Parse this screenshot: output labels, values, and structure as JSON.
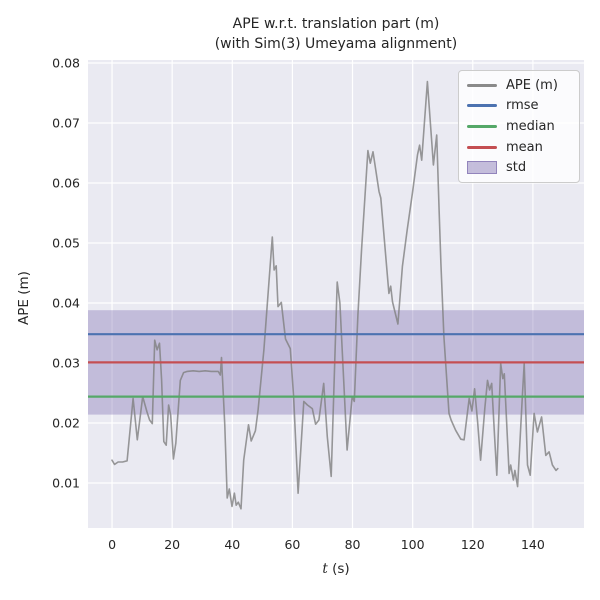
{
  "figure": {
    "title_line1": "APE w.r.t. translation part (m)",
    "title_line2": "(with Sim(3) Umeyama alignment)",
    "xlabel_var": "t",
    "xlabel_unit": "(s)",
    "ylabel": "APE (m)"
  },
  "legend": {
    "items": [
      {
        "label": "APE (m)",
        "kind": "line",
        "swatch_css": "#8a8a8a",
        "border_css": "transparent"
      },
      {
        "label": "rmse",
        "kind": "line",
        "swatch_css": "#4c72b0",
        "border_css": "transparent"
      },
      {
        "label": "median",
        "kind": "line",
        "swatch_css": "#55a868",
        "border_css": "transparent"
      },
      {
        "label": "mean",
        "kind": "line",
        "swatch_css": "#c44e52",
        "border_css": "transparent"
      },
      {
        "label": "std",
        "kind": "patch",
        "swatch_css": "rgba(129,114,178,0.45)",
        "border_css": "rgba(129,114,178,0.75)"
      }
    ]
  },
  "style": {
    "figure_bg": "#ffffff",
    "axes_bg": "#eaeaf2",
    "grid_color": "#ffffff",
    "text_color": "#262626"
  },
  "chart_data": {
    "type": "line",
    "title": "APE w.r.t. translation part (m) (with Sim(3) Umeyama alignment)",
    "xlabel": "t (s)",
    "ylabel": "APE (m)",
    "xlim": [
      -8,
      157
    ],
    "ylim": [
      0.0025,
      0.0805
    ],
    "xticks": [
      0,
      20,
      40,
      60,
      80,
      100,
      120,
      140
    ],
    "yticks": [
      0.01,
      0.02,
      0.03,
      0.04,
      0.05,
      0.06,
      0.07,
      0.08
    ],
    "grid": true,
    "legend_position": "upper right",
    "stats": {
      "rmse": 0.0348,
      "mean": 0.0301,
      "median": 0.0244,
      "std": 0.0087
    },
    "hlines": [
      {
        "name": "rmse",
        "value": 0.0348,
        "color": "#4c72b0"
      },
      {
        "name": "median",
        "value": 0.0244,
        "color": "#55a868"
      },
      {
        "name": "mean",
        "value": 0.0301,
        "color": "#c44e52"
      }
    ],
    "band": {
      "name": "std",
      "range": [
        0.0214,
        0.0388
      ],
      "color": "#8172b2",
      "opacity": 0.38
    },
    "series": [
      {
        "name": "APE (m)",
        "color": "#7f7f7f",
        "opacity": 0.8,
        "x": [
          0,
          0.8,
          2,
          3.5,
          5,
          7,
          8.4,
          10.2,
          11.6,
          12.5,
          13.4,
          14.2,
          15,
          15.8,
          16.5,
          17.2,
          18,
          18.8,
          19.5,
          20.4,
          21.2,
          22.7,
          23.8,
          25,
          27,
          29,
          31,
          33,
          35.3,
          36,
          36.4,
          37.5,
          38.3,
          39,
          39.9,
          40.7,
          41.3,
          42,
          42.9,
          43.8,
          45.4,
          46.3,
          47.7,
          48.6,
          50.5,
          53.3,
          53.9,
          54.6,
          55.2,
          56.3,
          57.7,
          59.3,
          60.4,
          61.9,
          63.8,
          65,
          66.6,
          67.7,
          68.8,
          70.4,
          71.6,
          72.9,
          74.9,
          75.8,
          78.2,
          79.9,
          80.6,
          81.8,
          83,
          85.1,
          85.9,
          86.8,
          88.8,
          89.4,
          92.1,
          92.7,
          93.3,
          95.1,
          96.6,
          98.2,
          99.9,
          101.6,
          102.3,
          103,
          104.9,
          106.9,
          108,
          108.8,
          109.4,
          110.4,
          112.1,
          112.8,
          114.3,
          116,
          117.1,
          118.8,
          119.7,
          120.6,
          121.6,
          122.6,
          124,
          124.9,
          125.6,
          126.3,
          127.3,
          128,
          129.3,
          130,
          130.5,
          132.1,
          132.6,
          133.5,
          134,
          134.9,
          136.5,
          137.1,
          138.2,
          139.1,
          140.4,
          141.5,
          142.9,
          144.3,
          145.4,
          146.5,
          147.7,
          148.3
        ],
        "y": [
          0.0138,
          0.0131,
          0.0135,
          0.0135,
          0.0137,
          0.0241,
          0.0172,
          0.0244,
          0.0219,
          0.0205,
          0.0199,
          0.0338,
          0.0322,
          0.0333,
          0.0272,
          0.0169,
          0.0163,
          0.023,
          0.0213,
          0.014,
          0.0166,
          0.0271,
          0.0284,
          0.0286,
          0.0287,
          0.0286,
          0.0287,
          0.0286,
          0.0286,
          0.028,
          0.0309,
          0.0196,
          0.0075,
          0.009,
          0.0061,
          0.0083,
          0.0063,
          0.0068,
          0.0057,
          0.0138,
          0.0197,
          0.017,
          0.0187,
          0.0222,
          0.0322,
          0.051,
          0.0455,
          0.0462,
          0.0394,
          0.0401,
          0.034,
          0.0324,
          0.0244,
          0.0083,
          0.0236,
          0.023,
          0.0224,
          0.0198,
          0.0205,
          0.0266,
          0.0177,
          0.0111,
          0.0435,
          0.04,
          0.0155,
          0.0244,
          0.0236,
          0.038,
          0.049,
          0.0654,
          0.0633,
          0.0652,
          0.0586,
          0.0575,
          0.0416,
          0.0428,
          0.0402,
          0.0365,
          0.0461,
          0.0522,
          0.0583,
          0.0647,
          0.0663,
          0.0638,
          0.0769,
          0.063,
          0.068,
          0.0555,
          0.0466,
          0.0344,
          0.0216,
          0.0205,
          0.0188,
          0.0173,
          0.0172,
          0.0241,
          0.022,
          0.0257,
          0.0202,
          0.0138,
          0.0224,
          0.0271,
          0.0255,
          0.0266,
          0.0174,
          0.0113,
          0.0299,
          0.0274,
          0.0282,
          0.0116,
          0.013,
          0.0105,
          0.0121,
          0.0094,
          0.0246,
          0.0299,
          0.013,
          0.0113,
          0.0216,
          0.0185,
          0.021,
          0.0146,
          0.0152,
          0.013,
          0.0121,
          0.0124
        ]
      }
    ]
  }
}
